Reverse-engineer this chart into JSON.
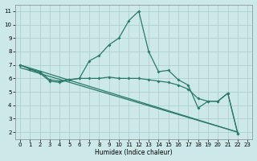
{
  "xlabel": "Humidex (Indice chaleur)",
  "bg_color": "#cce8e8",
  "grid_color": "#aacccc",
  "line_color": "#2a7a6a",
  "xlim": [
    -0.5,
    23.5
  ],
  "ylim": [
    1.5,
    11.5
  ],
  "xticks": [
    0,
    1,
    2,
    3,
    4,
    5,
    6,
    7,
    8,
    9,
    10,
    11,
    12,
    13,
    14,
    15,
    16,
    17,
    18,
    19,
    20,
    21,
    22,
    23
  ],
  "yticks": [
    2,
    3,
    4,
    5,
    6,
    7,
    8,
    9,
    10,
    11
  ],
  "line1_x": [
    0,
    1,
    2,
    3,
    4,
    5,
    6,
    7,
    8,
    9,
    10,
    11,
    12,
    13,
    14,
    15,
    16,
    17,
    18,
    19,
    20,
    21,
    22
  ],
  "line1_y": [
    7.0,
    6.7,
    6.5,
    5.9,
    5.8,
    5.9,
    6.0,
    7.3,
    7.7,
    8.5,
    9.0,
    10.3,
    11.0,
    8.0,
    6.5,
    6.6,
    5.9,
    5.5,
    3.8,
    4.3,
    4.3,
    4.9,
    1.9
  ],
  "line2_x": [
    0,
    1,
    2,
    3,
    4,
    5,
    6,
    7,
    8,
    9,
    10,
    11,
    12,
    13,
    14,
    15,
    16,
    17,
    18,
    19,
    20,
    21,
    22
  ],
  "line2_y": [
    7.0,
    6.7,
    6.4,
    5.8,
    5.7,
    5.9,
    6.0,
    6.0,
    6.0,
    6.1,
    6.0,
    6.0,
    6.0,
    5.9,
    5.8,
    5.7,
    5.5,
    5.2,
    4.5,
    4.3,
    4.3,
    4.9,
    1.9
  ],
  "line3_x": [
    0,
    22
  ],
  "line3_y": [
    7.0,
    2.0
  ],
  "line4_x": [
    0,
    22
  ],
  "line4_y": [
    6.8,
    2.0
  ]
}
